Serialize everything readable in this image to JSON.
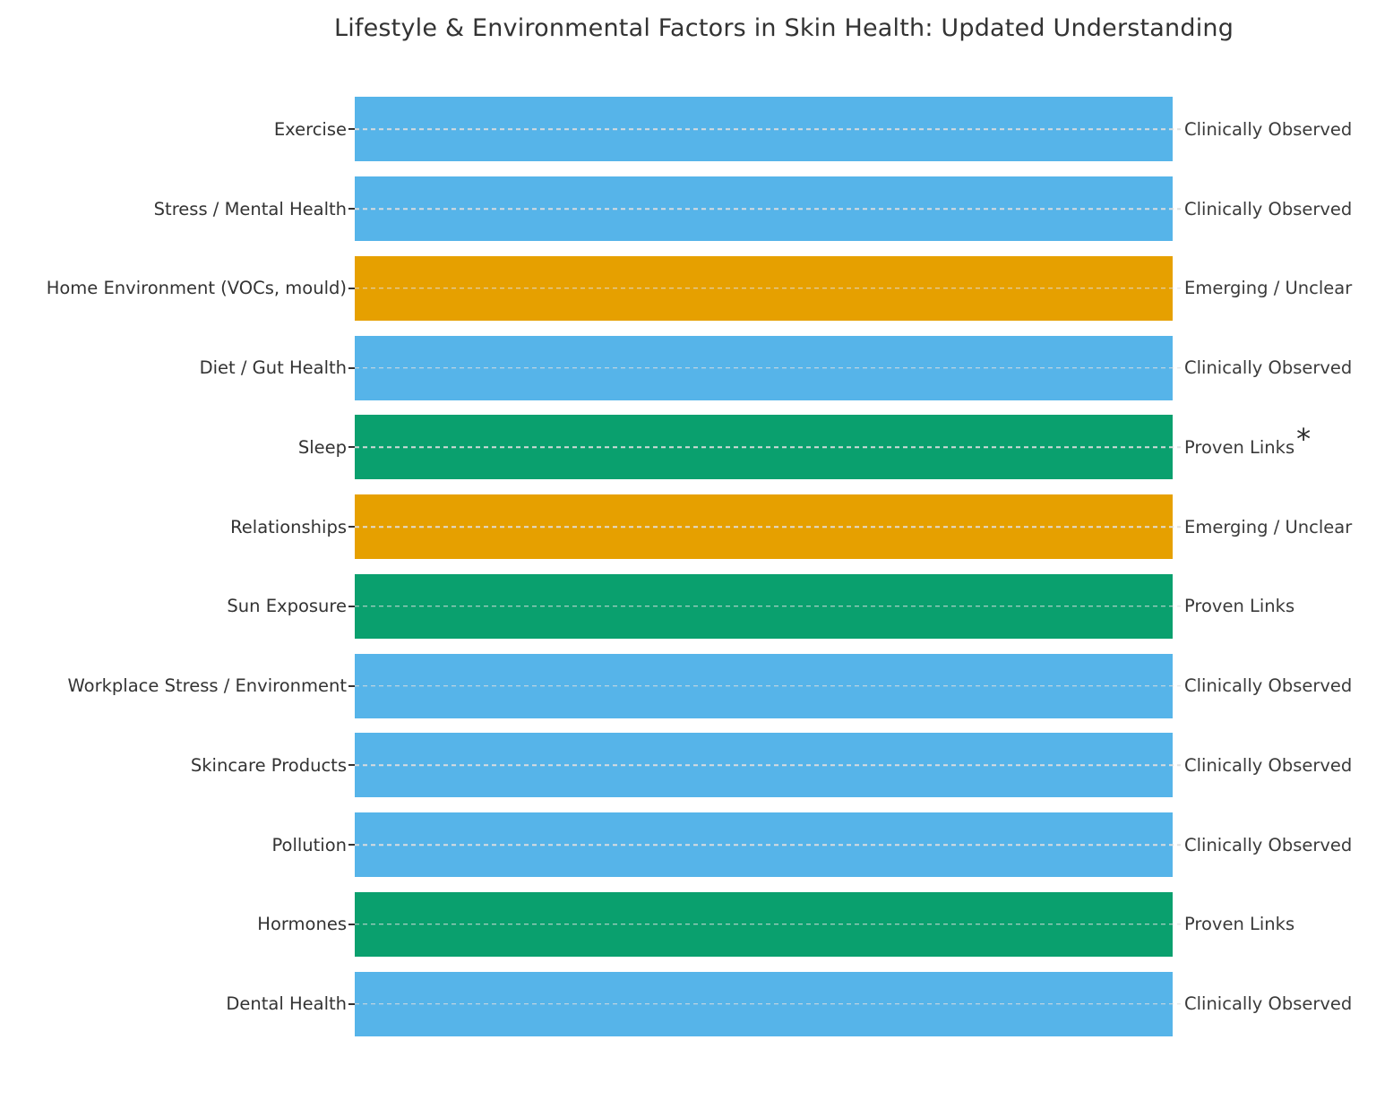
{
  "title": "Lifestyle & Environmental Factors in Skin Health: Updated Understanding",
  "chart_data": {
    "type": "bar",
    "orientation": "horizontal",
    "title": "Lifestyle & Environmental Factors in Skin Health: Updated Understanding",
    "xlabel": "",
    "ylabel": "",
    "xlim": [
      0,
      1
    ],
    "grid": "dashed horizontal gridline per category, drawn over bars",
    "legend": null,
    "bar_note": "all bars span the full x-axis width (value 1.0); color encodes evidence status",
    "colors": {
      "Clinically Observed": "#56B4E9",
      "Emerging / Unclear": "#E6A000",
      "Proven Links": "#0AA06E"
    },
    "categories": [
      "Exercise",
      "Stress / Mental Health",
      "Home Environment (VOCs, mould)",
      "Diet / Gut Health",
      "Sleep",
      "Relationships",
      "Sun Exposure",
      "Workplace Stress / Environment",
      "Skincare Products",
      "Pollution",
      "Hormones",
      "Dental Health"
    ],
    "rows": [
      {
        "category": "Exercise",
        "status": "Clinically Observed",
        "value": 1.0,
        "asterisk": false
      },
      {
        "category": "Stress / Mental Health",
        "status": "Clinically Observed",
        "value": 1.0,
        "asterisk": false
      },
      {
        "category": "Home Environment (VOCs, mould)",
        "status": "Emerging / Unclear",
        "value": 1.0,
        "asterisk": false
      },
      {
        "category": "Diet / Gut Health",
        "status": "Clinically Observed",
        "value": 1.0,
        "asterisk": false
      },
      {
        "category": "Sleep",
        "status": "Proven Links",
        "value": 1.0,
        "asterisk": true
      },
      {
        "category": "Relationships",
        "status": "Emerging / Unclear",
        "value": 1.0,
        "asterisk": false
      },
      {
        "category": "Sun Exposure",
        "status": "Proven Links",
        "value": 1.0,
        "asterisk": false
      },
      {
        "category": "Workplace Stress / Environment",
        "status": "Clinically Observed",
        "value": 1.0,
        "asterisk": false
      },
      {
        "category": "Skincare Products",
        "status": "Clinically Observed",
        "value": 1.0,
        "asterisk": false
      },
      {
        "category": "Pollution",
        "status": "Clinically Observed",
        "value": 1.0,
        "asterisk": false
      },
      {
        "category": "Hormones",
        "status": "Proven Links",
        "value": 1.0,
        "asterisk": false
      },
      {
        "category": "Dental Health",
        "status": "Clinically Observed",
        "value": 1.0,
        "asterisk": false
      }
    ],
    "annotations": {
      "asterisk_glyph": "*",
      "asterisk_row": "Sleep"
    }
  }
}
